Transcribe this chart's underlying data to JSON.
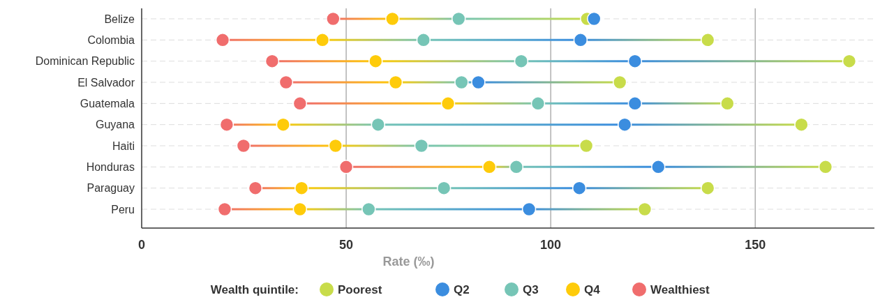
{
  "chart_data": {
    "type": "scatter",
    "xlabel": "Rate (‰)",
    "legend_title": "Wealth quintile:",
    "legend": "bottom",
    "grid": true,
    "marker": "circle",
    "orientation": "horizontal",
    "categories": [
      "Belize",
      "Colombia",
      "Dominican Republic",
      "El Salvador",
      "Guatemala",
      "Guyana",
      "Haiti",
      "Honduras",
      "Paraguay",
      "Peru"
    ],
    "xlim": [
      0,
      180
    ],
    "xticks": [
      0,
      50,
      100,
      150
    ],
    "series": [
      {
        "name": "Poorest",
        "color": "#c8dc4a",
        "values": [
          108.9,
          138.4,
          173,
          116.9,
          143.2,
          161.3,
          108.7,
          167.2,
          138.4,
          123.0
        ]
      },
      {
        "name": "Q2",
        "color": "#3b8ddf",
        "values": [
          110.6,
          107.3,
          120.6,
          82.3,
          120.6,
          118.1,
          null,
          126.3,
          107.0,
          94.7
        ]
      },
      {
        "name": "Q3",
        "color": "#76c5b6",
        "values": [
          77.5,
          68.9,
          92.8,
          78.2,
          96.9,
          57.8,
          68.4,
          91.6,
          73.9,
          55.5
        ]
      },
      {
        "name": "Q4",
        "color": "#fecb0a",
        "values": [
          61.3,
          44.2,
          57.2,
          62.1,
          74.9,
          34.6,
          47.4,
          85.0,
          39.1,
          38.7
        ]
      },
      {
        "name": "Wealthiest",
        "color": "#f06d6d",
        "values": [
          46.8,
          19.8,
          31.9,
          35.3,
          38.7,
          20.8,
          24.9,
          50.0,
          27.8,
          20.3
        ]
      }
    ]
  }
}
